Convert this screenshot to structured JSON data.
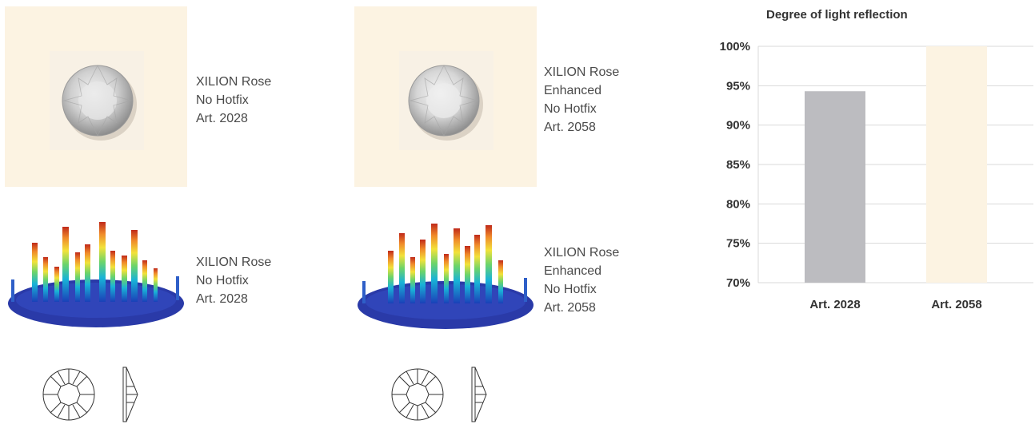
{
  "products": [
    {
      "line1": "XILION Rose",
      "line2": "No Hotfix",
      "line3": "Art. 2028",
      "line4": ""
    },
    {
      "line1": "XILION Rose",
      "line2": "Enhanced",
      "line3": "No Hotfix",
      "line4": "Art. 2058"
    }
  ],
  "colors": {
    "swatch_bg": "#fcf3e2",
    "bar_2028": "#bcbcc0",
    "bar_2058": "#fcf3e2",
    "gridline": "#d9d9d9",
    "axis_text": "#333333"
  },
  "chart_data": {
    "type": "bar",
    "title": "Degree of light reflection",
    "xlabel": "",
    "ylabel": "",
    "categories": [
      "Art. 2028",
      "Art. 2058"
    ],
    "values": [
      94.3,
      100
    ],
    "ylim": [
      70,
      100
    ],
    "yticks": [
      70,
      75,
      80,
      85,
      90,
      95,
      100
    ],
    "ytick_labels": [
      "70%",
      "75%",
      "80%",
      "85%",
      "90%",
      "95%",
      "100%"
    ],
    "grid": true,
    "legend": "none"
  }
}
